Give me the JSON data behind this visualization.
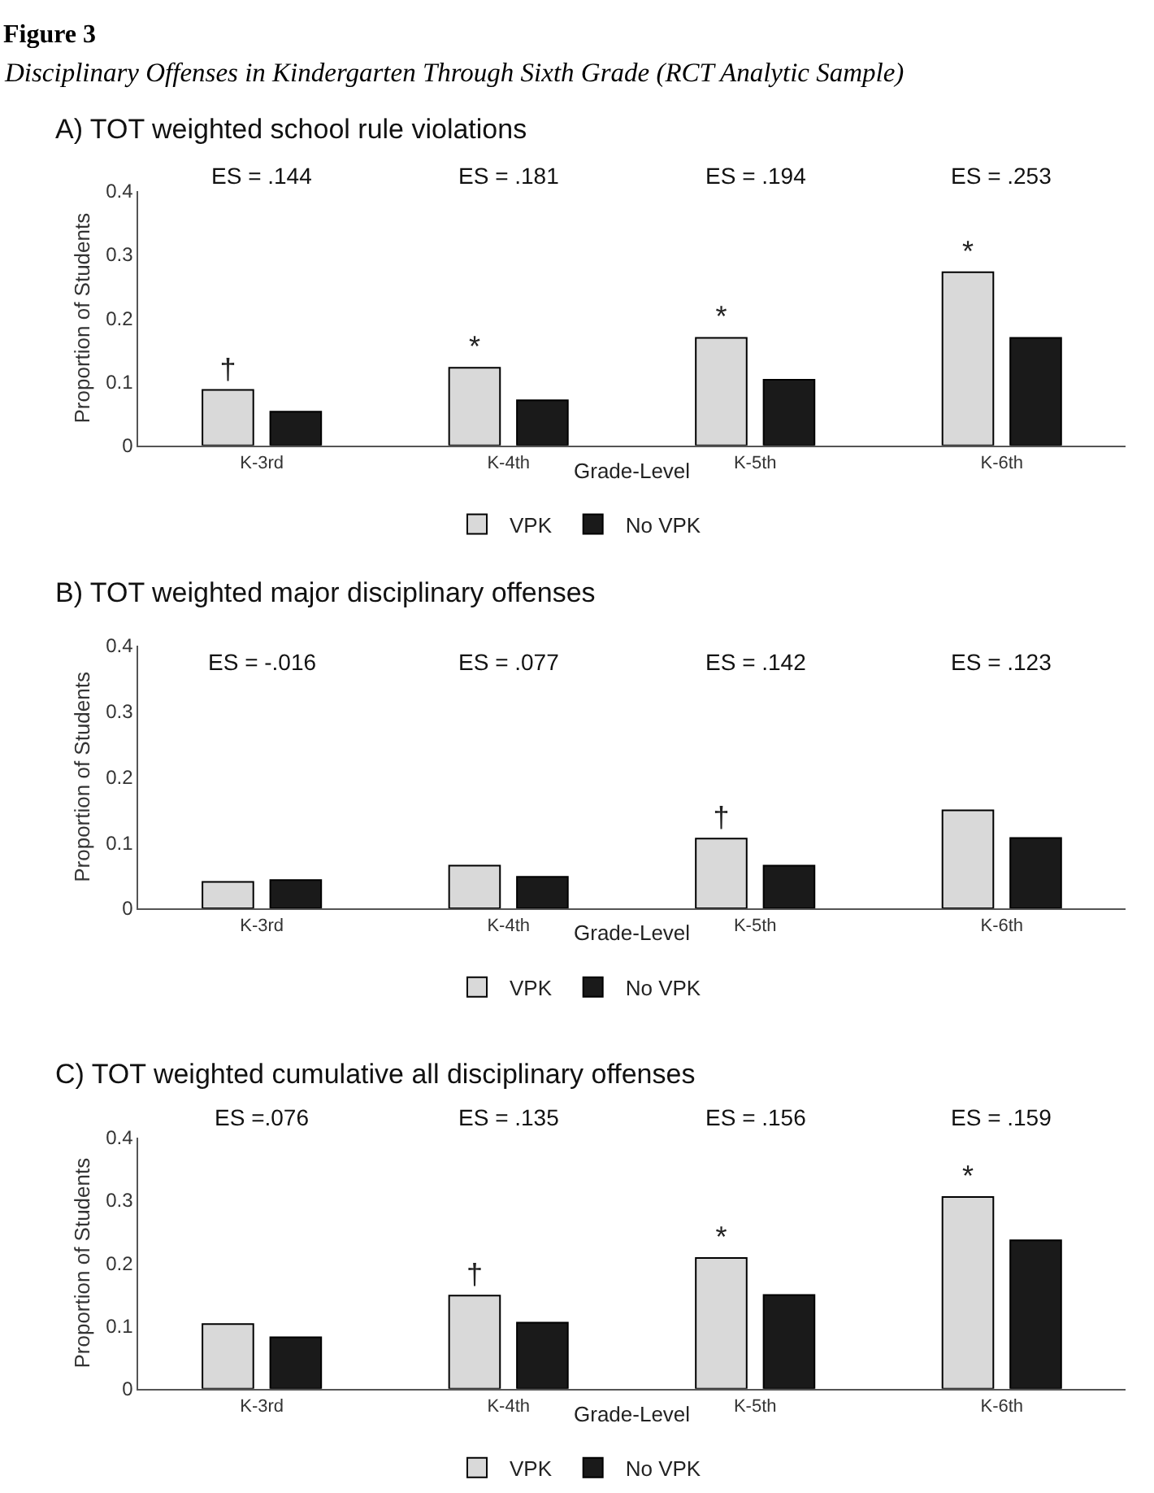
{
  "chart_data": [
    {
      "type": "bar",
      "title": "A) TOT weighted school rule violations",
      "xlabel": "Grade-Level",
      "ylabel": "Proportion of Students",
      "categories": [
        "K-3rd",
        "K-4th",
        "K-5th",
        "K-6th"
      ],
      "series": [
        {
          "name": "VPK",
          "color": "#d9d9d9",
          "values": [
            0.087,
            0.122,
            0.169,
            0.272
          ],
          "value_labels": [
            "†",
            "*",
            "*",
            "*"
          ]
        },
        {
          "name": "No VPK",
          "color": "#1a1a1a",
          "values": [
            0.053,
            0.071,
            0.103,
            0.169
          ]
        }
      ],
      "ylim": [
        0,
        0.4
      ],
      "yticks": [
        0,
        0.1,
        0.2,
        0.3,
        0.4
      ],
      "legend": "bottom",
      "annotations": [
        "Figure 3",
        "Disciplinary Offenses in Kindergarten Through Sixth Grade (RCT Analytic Sample)",
        "ES = .144",
        "ES = .181",
        "ES = .194",
        "ES = .253"
      ]
    },
    {
      "type": "bar",
      "title": "B) TOT weighted major disciplinary offenses",
      "xlabel": "Grade-Level",
      "ylabel": "Proportion of Students",
      "categories": [
        "K-3rd",
        "K-4th",
        "K-5th",
        "K-6th"
      ],
      "series": [
        {
          "name": "VPK",
          "color": "#d9d9d9",
          "values": [
            0.04,
            0.065,
            0.106,
            0.149
          ],
          "value_labels": [
            null,
            null,
            "†",
            null
          ]
        },
        {
          "name": "No VPK",
          "color": "#1a1a1a",
          "values": [
            0.043,
            0.048,
            0.065,
            0.107
          ]
        }
      ],
      "ylim": [
        0,
        0.4
      ],
      "yticks": [
        0,
        0.1,
        0.2,
        0.3,
        0.4
      ],
      "legend": "bottom",
      "annotations": [
        "ES = -.016",
        "ES = .077",
        "ES = .142",
        "ES = .123"
      ]
    },
    {
      "type": "bar",
      "title": "C) TOT weighted cumulative all disciplinary offenses",
      "xlabel": "Grade-Level",
      "ylabel": "Proportion of Students",
      "categories": [
        "K-3rd",
        "K-4th",
        "K-5th",
        "K-6th"
      ],
      "series": [
        {
          "name": "VPK",
          "color": "#d9d9d9",
          "values": [
            0.103,
            0.148,
            0.208,
            0.305
          ],
          "value_labels": [
            null,
            "†",
            "*",
            "*"
          ]
        },
        {
          "name": "No VPK",
          "color": "#1a1a1a",
          "values": [
            0.082,
            0.105,
            0.149,
            0.236
          ]
        }
      ],
      "ylim": [
        0,
        0.4
      ],
      "yticks": [
        0,
        0.1,
        0.2,
        0.3,
        0.4
      ],
      "legend": "bottom",
      "annotations": [
        "ES =.076",
        "ES = .135",
        "ES = .156",
        "ES = .159"
      ]
    }
  ]
}
